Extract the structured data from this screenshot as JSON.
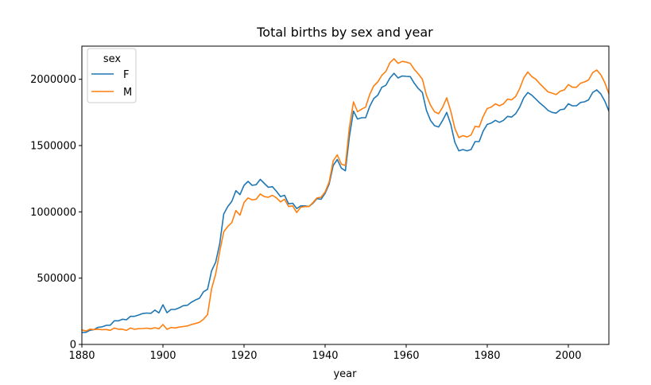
{
  "chart_data": {
    "type": "line",
    "title": "Total births by sex and year",
    "xlabel": "year",
    "ylabel": "",
    "xlim": [
      1880,
      2010
    ],
    "ylim": [
      0,
      2250000
    ],
    "xticks": [
      1880,
      1900,
      1920,
      1940,
      1960,
      1980,
      2000
    ],
    "xtick_labels": [
      "1880",
      "1900",
      "1920",
      "1940",
      "1960",
      "1980",
      "2000"
    ],
    "yticks": [
      0,
      500000,
      1000000,
      1500000,
      2000000
    ],
    "ytick_labels": [
      "0",
      "500000",
      "1000000",
      "1500000",
      "2000000"
    ],
    "grid": false,
    "legend": {
      "title": "sex",
      "location": "upper left"
    },
    "series": [
      {
        "name": "F",
        "color": "#1f77b4",
        "x": [
          1880,
          1881,
          1882,
          1883,
          1884,
          1885,
          1886,
          1887,
          1888,
          1889,
          1890,
          1891,
          1892,
          1893,
          1894,
          1895,
          1896,
          1897,
          1898,
          1899,
          1900,
          1901,
          1902,
          1903,
          1904,
          1905,
          1906,
          1907,
          1908,
          1909,
          1910,
          1911,
          1912,
          1913,
          1914,
          1915,
          1916,
          1917,
          1918,
          1919,
          1920,
          1921,
          1922,
          1923,
          1924,
          1925,
          1926,
          1927,
          1928,
          1929,
          1930,
          1931,
          1932,
          1933,
          1934,
          1935,
          1936,
          1937,
          1938,
          1939,
          1940,
          1941,
          1942,
          1943,
          1944,
          1945,
          1946,
          1947,
          1948,
          1949,
          1950,
          1951,
          1952,
          1953,
          1954,
          1955,
          1956,
          1957,
          1958,
          1959,
          1960,
          1961,
          1962,
          1963,
          1964,
          1965,
          1966,
          1967,
          1968,
          1969,
          1970,
          1971,
          1972,
          1973,
          1974,
          1975,
          1976,
          1977,
          1978,
          1979,
          1980,
          1981,
          1982,
          1983,
          1984,
          1985,
          1986,
          1987,
          1988,
          1989,
          1990,
          1991,
          1992,
          1993,
          1994,
          1995,
          1996,
          1997,
          1998,
          1999,
          2000,
          2001,
          2002,
          2003,
          2004,
          2005,
          2006,
          2007,
          2008,
          2009,
          2010
        ],
        "values": [
          90000,
          91000,
          107000,
          112000,
          129000,
          133000,
          144000,
          145000,
          178000,
          178000,
          190000,
          186000,
          212000,
          212000,
          222000,
          233000,
          237000,
          234000,
          259000,
          238000,
          299000,
          239000,
          264000,
          264000,
          276000,
          292000,
          295000,
          318000,
          335000,
          348000,
          397000,
          416000,
          555000,
          620000,
          759000,
          985000,
          1040000,
          1080000,
          1160000,
          1130000,
          1200000,
          1230000,
          1200000,
          1205000,
          1245000,
          1215000,
          1185000,
          1190000,
          1155000,
          1115000,
          1125000,
          1060000,
          1065000,
          1025000,
          1045000,
          1045000,
          1040000,
          1065000,
          1100000,
          1095000,
          1140000,
          1210000,
          1350000,
          1395000,
          1330000,
          1310000,
          1570000,
          1760000,
          1700000,
          1710000,
          1710000,
          1795000,
          1855000,
          1880000,
          1940000,
          1955000,
          2010000,
          2045000,
          2010000,
          2025000,
          2022000,
          2020000,
          1970000,
          1930000,
          1900000,
          1765000,
          1690000,
          1650000,
          1640000,
          1690000,
          1750000,
          1660000,
          1525000,
          1460000,
          1470000,
          1460000,
          1470000,
          1530000,
          1530000,
          1610000,
          1660000,
          1670000,
          1690000,
          1675000,
          1690000,
          1720000,
          1715000,
          1740000,
          1790000,
          1860000,
          1900000,
          1880000,
          1850000,
          1820000,
          1795000,
          1765000,
          1750000,
          1745000,
          1770000,
          1775000,
          1815000,
          1800000,
          1800000,
          1825000,
          1830000,
          1845000,
          1900000,
          1920000,
          1890000,
          1835000,
          1760000
        ]
      },
      {
        "name": "M",
        "color": "#ff7f0e",
        "x": [
          1880,
          1881,
          1882,
          1883,
          1884,
          1885,
          1886,
          1887,
          1888,
          1889,
          1890,
          1891,
          1892,
          1893,
          1894,
          1895,
          1896,
          1897,
          1898,
          1899,
          1900,
          1901,
          1902,
          1903,
          1904,
          1905,
          1906,
          1907,
          1908,
          1909,
          1910,
          1911,
          1912,
          1913,
          1914,
          1915,
          1916,
          1917,
          1918,
          1919,
          1920,
          1921,
          1922,
          1923,
          1924,
          1925,
          1926,
          1927,
          1928,
          1929,
          1930,
          1931,
          1932,
          1933,
          1934,
          1935,
          1936,
          1937,
          1938,
          1939,
          1940,
          1941,
          1942,
          1943,
          1944,
          1945,
          1946,
          1947,
          1948,
          1949,
          1950,
          1951,
          1952,
          1953,
          1954,
          1955,
          1956,
          1957,
          1958,
          1959,
          1960,
          1961,
          1962,
          1963,
          1964,
          1965,
          1966,
          1967,
          1968,
          1969,
          1970,
          1971,
          1972,
          1973,
          1974,
          1975,
          1976,
          1977,
          1978,
          1979,
          1980,
          1981,
          1982,
          1983,
          1984,
          1985,
          1986,
          1987,
          1988,
          1989,
          1990,
          1991,
          1992,
          1993,
          1994,
          1995,
          1996,
          1997,
          1998,
          1999,
          2000,
          2001,
          2002,
          2003,
          2004,
          2005,
          2006,
          2007,
          2008,
          2009,
          2010
        ],
        "values": [
          110000,
          101000,
          115000,
          112000,
          115000,
          111000,
          113000,
          106000,
          124000,
          115000,
          115000,
          106000,
          124000,
          114000,
          119000,
          120000,
          123000,
          118000,
          126000,
          118000,
          150000,
          114000,
          128000,
          124000,
          131000,
          135000,
          139000,
          150000,
          158000,
          167000,
          190000,
          225000,
          420000,
          530000,
          700000,
          850000,
          890000,
          920000,
          1010000,
          975000,
          1070000,
          1105000,
          1090000,
          1095000,
          1135000,
          1115000,
          1110000,
          1125000,
          1105000,
          1075000,
          1095000,
          1040000,
          1045000,
          995000,
          1035000,
          1040000,
          1040000,
          1070000,
          1105000,
          1110000,
          1150000,
          1225000,
          1385000,
          1430000,
          1360000,
          1350000,
          1640000,
          1830000,
          1755000,
          1775000,
          1790000,
          1885000,
          1950000,
          1980000,
          2030000,
          2060000,
          2125000,
          2155000,
          2120000,
          2135000,
          2130000,
          2120000,
          2075000,
          2040000,
          2000000,
          1880000,
          1805000,
          1755000,
          1740000,
          1790000,
          1860000,
          1760000,
          1630000,
          1560000,
          1575000,
          1565000,
          1580000,
          1645000,
          1640000,
          1720000,
          1780000,
          1790000,
          1815000,
          1800000,
          1815000,
          1850000,
          1845000,
          1870000,
          1930000,
          2010000,
          2055000,
          2020000,
          2000000,
          1965000,
          1935000,
          1905000,
          1895000,
          1885000,
          1910000,
          1920000,
          1960000,
          1940000,
          1940000,
          1970000,
          1980000,
          1995000,
          2050000,
          2070000,
          2035000,
          1975000,
          1890000
        ]
      }
    ]
  }
}
